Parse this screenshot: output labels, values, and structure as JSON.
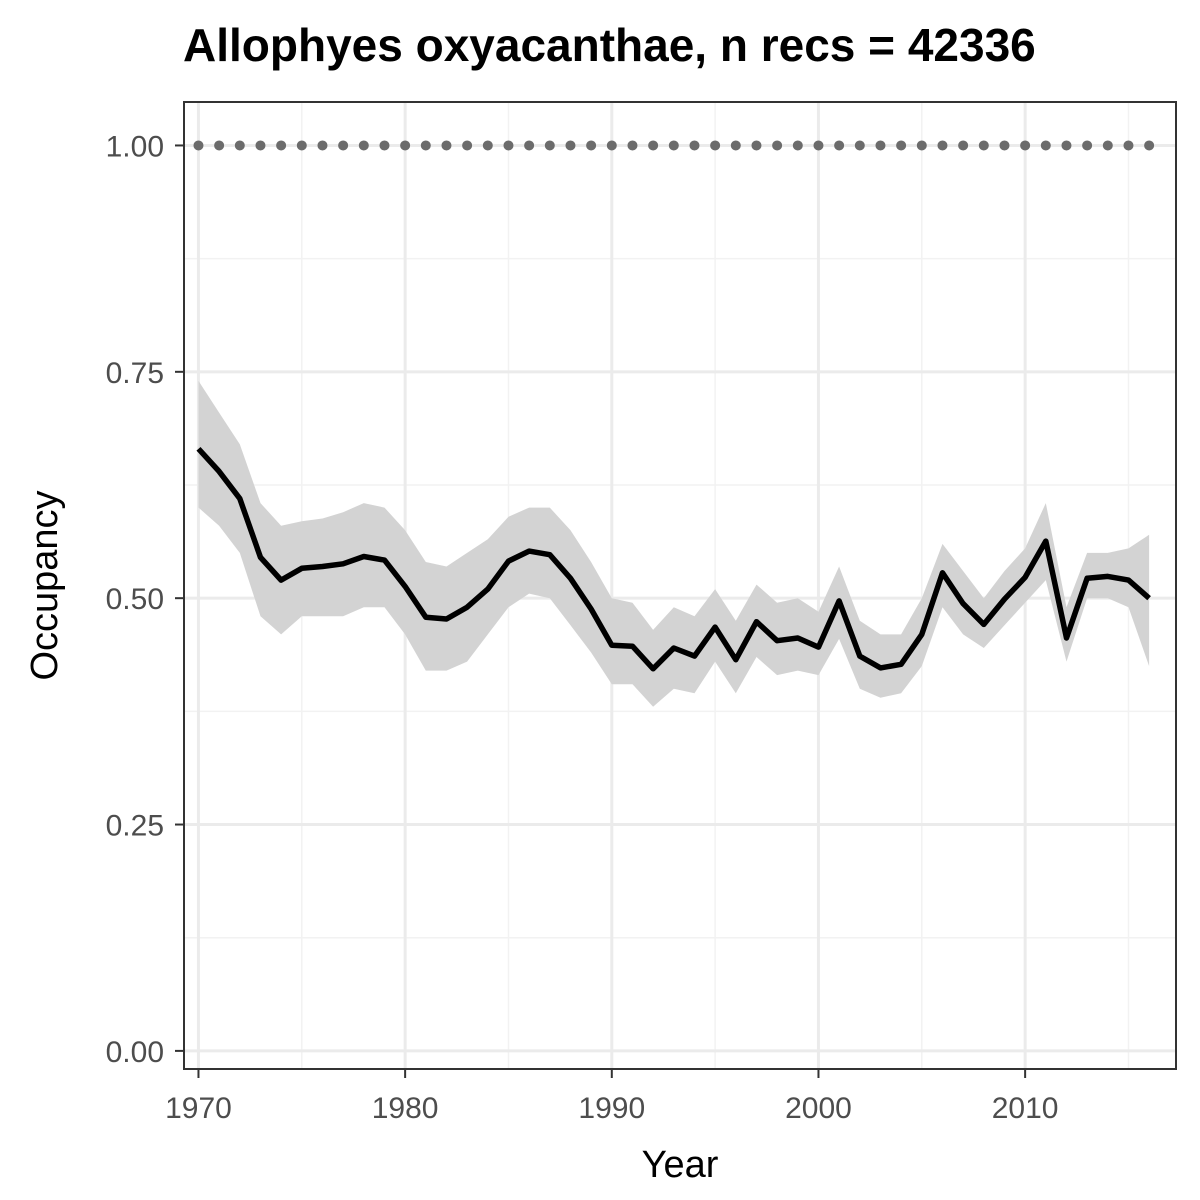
{
  "chart_data": {
    "type": "line",
    "title": "Allophyes oxyacanthae, n recs = 42336",
    "xlabel": "Year",
    "ylabel": "Occupancy",
    "xlim": [
      1969.3,
      2017.3
    ],
    "ylim": [
      -0.02,
      1.048
    ],
    "x_ticks": [
      1970,
      1980,
      1990,
      2000,
      2010
    ],
    "x_tick_labels": [
      "1970",
      "1980",
      "1990",
      "2000",
      "2010"
    ],
    "y_ticks": [
      0,
      0.25,
      0.5,
      0.75,
      1.0
    ],
    "y_tick_labels": [
      "0.00",
      "0.25",
      "0.50",
      "0.75",
      "1.00"
    ],
    "grid": true,
    "legend": "none",
    "series": [
      {
        "type": "line",
        "color": "#000000",
        "x": [
          1970,
          1971,
          1972,
          1973,
          1974,
          1975,
          1976,
          1977,
          1978,
          1979,
          1980,
          1981,
          1982,
          1983,
          1984,
          1985,
          1986,
          1987,
          1988,
          1989,
          1990,
          1991,
          1992,
          1993,
          1994,
          1995,
          1996,
          1997,
          1998,
          1999,
          2000,
          2001,
          2002,
          2003,
          2004,
          2005,
          2006,
          2007,
          2008,
          2009,
          2010,
          2011,
          2012,
          2013,
          2014,
          2015,
          2016
        ],
        "y": [
          0.665,
          0.64,
          0.61,
          0.545,
          0.52,
          0.533,
          0.535,
          0.538,
          0.546,
          0.542,
          0.513,
          0.479,
          0.477,
          0.49,
          0.51,
          0.541,
          0.552,
          0.548,
          0.522,
          0.488,
          0.448,
          0.447,
          0.422,
          0.445,
          0.436,
          0.468,
          0.432,
          0.474,
          0.453,
          0.456,
          0.446,
          0.497,
          0.436,
          0.423,
          0.427,
          0.46,
          0.528,
          0.494,
          0.471,
          0.499,
          0.523,
          0.563,
          0.456,
          0.522,
          0.524,
          0.52,
          0.5
        ]
      },
      {
        "type": "ribbon",
        "color": "#d3d3d3",
        "x": [
          1970,
          1971,
          1972,
          1973,
          1974,
          1975,
          1976,
          1977,
          1978,
          1979,
          1980,
          1981,
          1982,
          1983,
          1984,
          1985,
          1986,
          1987,
          1988,
          1989,
          1990,
          1991,
          1992,
          1993,
          1994,
          1995,
          1996,
          1997,
          1998,
          1999,
          2000,
          2001,
          2002,
          2003,
          2004,
          2005,
          2006,
          2007,
          2008,
          2009,
          2010,
          2011,
          2012,
          2013,
          2014,
          2015,
          2016
        ],
        "lower": [
          0.6,
          0.58,
          0.55,
          0.48,
          0.46,
          0.48,
          0.48,
          0.48,
          0.49,
          0.49,
          0.46,
          0.42,
          0.42,
          0.43,
          0.46,
          0.49,
          0.505,
          0.5,
          0.47,
          0.44,
          0.405,
          0.405,
          0.38,
          0.4,
          0.395,
          0.43,
          0.395,
          0.435,
          0.415,
          0.42,
          0.415,
          0.455,
          0.4,
          0.39,
          0.395,
          0.425,
          0.49,
          0.46,
          0.445,
          0.47,
          0.495,
          0.52,
          0.43,
          0.5,
          0.5,
          0.49,
          0.425
        ],
        "upper": [
          0.74,
          0.705,
          0.67,
          0.605,
          0.58,
          0.585,
          0.588,
          0.595,
          0.605,
          0.6,
          0.575,
          0.54,
          0.535,
          0.55,
          0.565,
          0.59,
          0.6,
          0.6,
          0.575,
          0.54,
          0.5,
          0.495,
          0.465,
          0.49,
          0.48,
          0.51,
          0.475,
          0.515,
          0.495,
          0.5,
          0.485,
          0.535,
          0.475,
          0.46,
          0.46,
          0.5,
          0.56,
          0.53,
          0.5,
          0.53,
          0.555,
          0.605,
          0.49,
          0.55,
          0.55,
          0.555,
          0.57
        ]
      },
      {
        "type": "points",
        "color": "#6b6b6b",
        "x": [
          1970,
          1971,
          1972,
          1973,
          1974,
          1975,
          1976,
          1977,
          1978,
          1979,
          1980,
          1981,
          1982,
          1983,
          1984,
          1985,
          1986,
          1987,
          1988,
          1989,
          1990,
          1991,
          1992,
          1993,
          1994,
          1995,
          1996,
          1997,
          1998,
          1999,
          2000,
          2001,
          2002,
          2003,
          2004,
          2005,
          2006,
          2007,
          2008,
          2009,
          2010,
          2011,
          2012,
          2013,
          2014,
          2015,
          2016
        ],
        "y": [
          1,
          1,
          1,
          1,
          1,
          1,
          1,
          1,
          1,
          1,
          1,
          1,
          1,
          1,
          1,
          1,
          1,
          1,
          1,
          1,
          1,
          1,
          1,
          1,
          1,
          1,
          1,
          1,
          1,
          1,
          1,
          1,
          1,
          1,
          1,
          1,
          1,
          1,
          1,
          1,
          1,
          1,
          1,
          1,
          1,
          1,
          1
        ]
      }
    ]
  }
}
